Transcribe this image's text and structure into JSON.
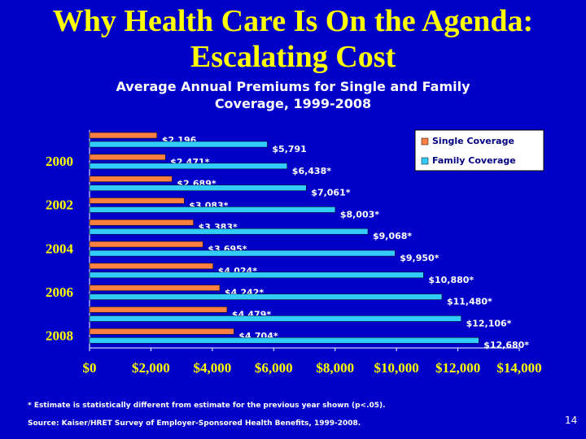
{
  "chart_data": {
    "type": "hbar",
    "title": "Why Health Care Is On the Agenda: Escalating Cost",
    "subtitle": "Average Annual Premiums for Single and Family Coverage, 1999-2008",
    "categories": [
      null,
      "2000",
      null,
      "2002",
      null,
      "2004",
      null,
      "2006",
      null,
      "2008"
    ],
    "series": [
      {
        "name": "Single Coverage",
        "color": "#ff8040",
        "values": [
          2196,
          2471,
          2689,
          3083,
          3383,
          3695,
          4024,
          4242,
          4479,
          4704
        ],
        "value_labels": [
          "$2,196",
          "$2,471*",
          "$2,689*",
          "$3,083*",
          "$3,383*",
          "$3,695*",
          "$4,024*",
          "$4,242*",
          "$4,479*",
          "$4,704*"
        ]
      },
      {
        "name": "Family Coverage",
        "color": "#33ccff",
        "values": [
          5791,
          6438,
          7061,
          8003,
          9068,
          9950,
          10880,
          11480,
          12106,
          12680
        ],
        "value_labels": [
          "$5,791",
          "$6,438*",
          "$7,061*",
          "$8,003*",
          "$9,068*",
          "$9,950*",
          "$10,880*",
          "$11,480*",
          "$12,106*",
          "$12,680*"
        ]
      }
    ],
    "xlim": [
      0,
      14000
    ],
    "xticks": [
      {
        "value": 0,
        "label": "$0"
      },
      {
        "value": 2000,
        "label": "$2,000"
      },
      {
        "value": 4000,
        "label": "$4,000"
      },
      {
        "value": 6000,
        "label": "$6,000"
      },
      {
        "value": 8000,
        "label": "$8,000"
      },
      {
        "value": 10000,
        "label": "$10,000"
      },
      {
        "value": 12000,
        "label": "$12,000"
      },
      {
        "value": 14000,
        "label": "$14,000"
      }
    ],
    "legend": "top-right",
    "footnote": "* Estimate is statistically different from estimate for the previous year shown (p<.05).",
    "source": "Source: Kaiser/HRET Survey of Employer-Sponsored Health Benefits, 1999-2008.",
    "page_number": "14"
  }
}
